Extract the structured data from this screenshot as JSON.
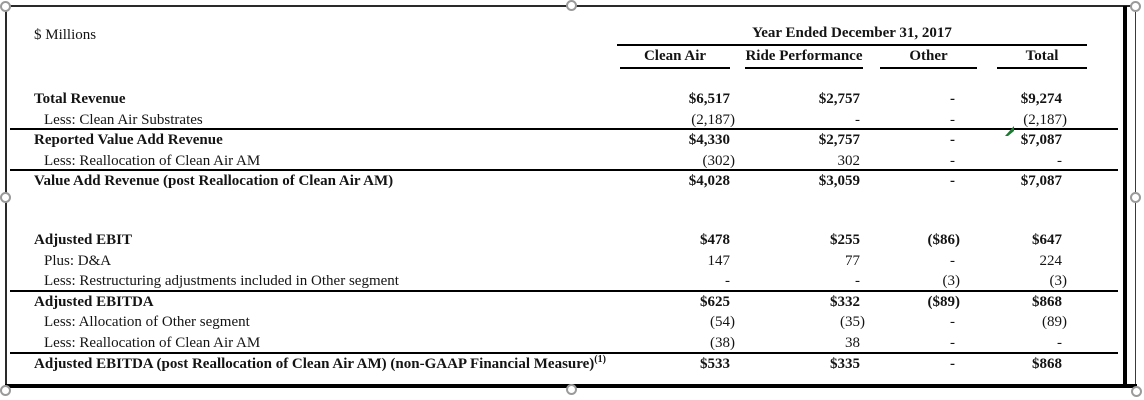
{
  "meta": {
    "units_label": "$ Millions",
    "period_header": "Year Ended December 31, 2017"
  },
  "columns": [
    "Clean Air",
    "Ride Performance",
    "Other",
    "Total"
  ],
  "rows": [
    {
      "label": "Total Revenue",
      "style": "bold",
      "indent": false,
      "values": [
        "$6,517",
        "$2,757",
        "-",
        "$9,274"
      ],
      "rule_below": false
    },
    {
      "label": "Less: Clean Air Substrates",
      "style": "regular",
      "indent": true,
      "values": [
        "(2,187)",
        "-",
        "-",
        "(2,187)"
      ],
      "rule_below": true
    },
    {
      "label": "Reported Value Add Revenue",
      "style": "bold",
      "indent": false,
      "values": [
        "$4,330",
        "$2,757",
        "-",
        "$7,087"
      ],
      "rule_below": false
    },
    {
      "label": "Less: Reallocation of Clean Air AM",
      "style": "regular",
      "indent": true,
      "values": [
        "(302)",
        "302",
        "-",
        "-"
      ],
      "rule_below": true
    },
    {
      "label": "Value Add Revenue (post Reallocation of Clean Air AM)",
      "style": "bold",
      "indent": false,
      "values": [
        "$4,028",
        "$3,059",
        "-",
        "$7,087"
      ],
      "rule_below": false
    },
    {
      "spacer": true
    },
    {
      "label": "Adjusted EBIT",
      "style": "bold",
      "indent": false,
      "values": [
        "$478",
        "$255",
        "($86)",
        "$647"
      ],
      "rule_below": false
    },
    {
      "label": "Plus: D&A",
      "style": "regular",
      "indent": true,
      "values": [
        "147",
        "77",
        "-",
        "224"
      ],
      "rule_below": false
    },
    {
      "label": "Less: Restructuring adjustments included in Other segment",
      "style": "regular",
      "indent": true,
      "values": [
        "-",
        "-",
        "(3)",
        "(3)"
      ],
      "rule_below": true
    },
    {
      "label": "Adjusted EBITDA",
      "style": "bold",
      "indent": false,
      "values": [
        "$625",
        "$332",
        "($89)",
        "$868"
      ],
      "rule_below": false
    },
    {
      "label": "Less: Allocation of Other segment",
      "style": "regular",
      "indent": true,
      "values": [
        "(54)",
        "(35)",
        "-",
        "(89)"
      ],
      "rule_below": false
    },
    {
      "label": "Less: Reallocation of Clean Air AM",
      "style": "regular",
      "indent": true,
      "values": [
        "(38)",
        "38",
        "-",
        "-"
      ],
      "rule_below": true
    },
    {
      "label": "Adjusted EBITDA (post Reallocation of Clean Air AM) (non-GAAP Financial Measure)",
      "superscript": "(1)",
      "style": "bold",
      "indent": false,
      "values": [
        "$533",
        "$335",
        "-",
        "$868"
      ],
      "rule_below": false
    }
  ],
  "annotation": {
    "name": "green-review-mark",
    "color": "#1b7a2f"
  }
}
